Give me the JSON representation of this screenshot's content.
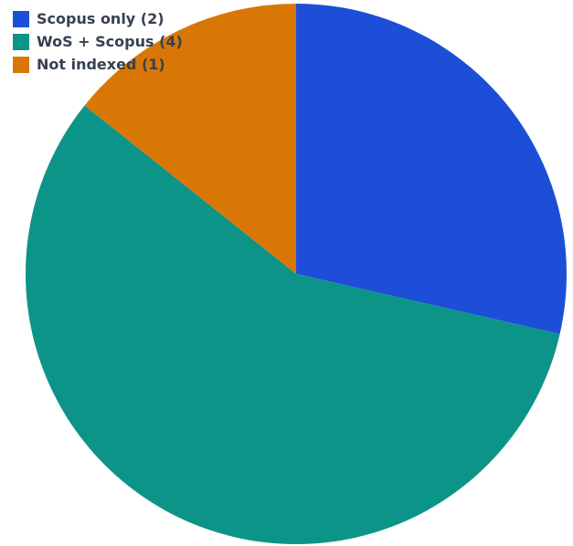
{
  "chart_data": {
    "type": "pie",
    "title": "",
    "legend_position": "top-left",
    "slices": [
      {
        "label": "Scopus only (2)",
        "value": 2,
        "color": "#1d4ed8"
      },
      {
        "label": "WoS + Scopus (4)",
        "value": 4,
        "color": "#0d9488"
      },
      {
        "label": "Not indexed (1)",
        "value": 1,
        "color": "#d97706"
      }
    ]
  }
}
